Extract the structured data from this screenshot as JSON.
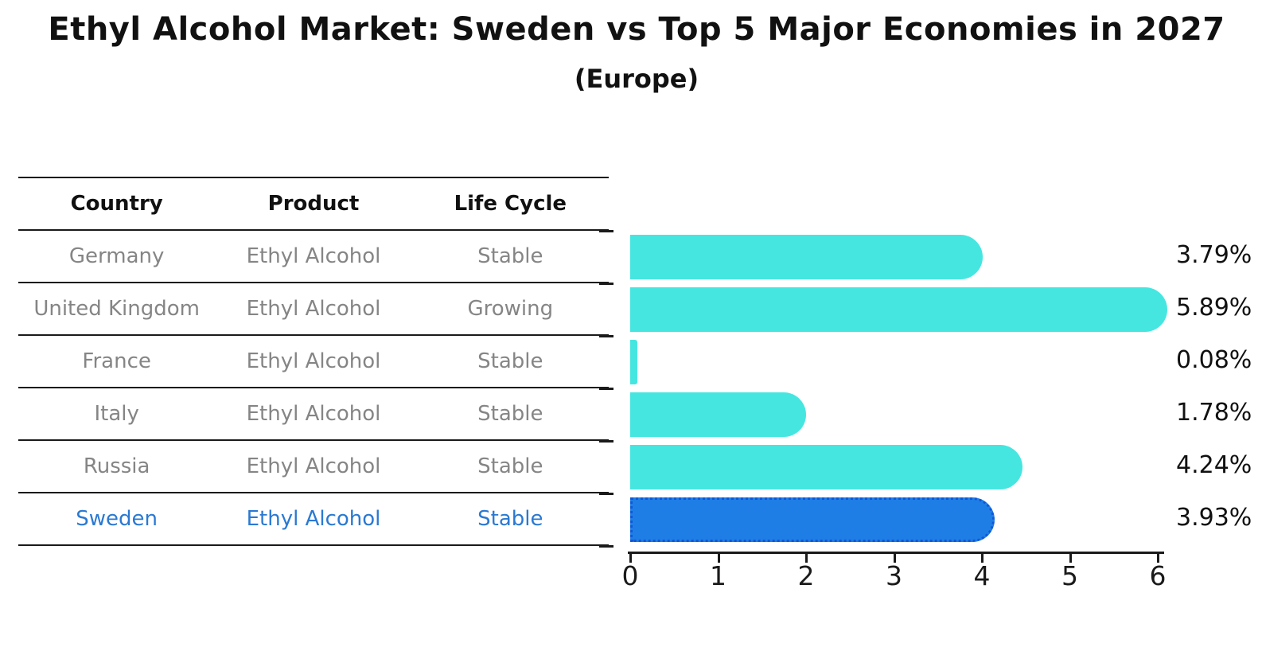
{
  "title": "Ethyl Alcohol Market: Sweden vs Top 5 Major Economies in 2027",
  "subtitle": "(Europe)",
  "table": {
    "headers": [
      "Country",
      "Product",
      "Life Cycle"
    ],
    "rows": [
      {
        "country": "Germany",
        "product": "Ethyl Alcohol",
        "life_cycle": "Stable",
        "highlight": false
      },
      {
        "country": "United Kingdom",
        "product": "Ethyl Alcohol",
        "life_cycle": "Growing",
        "highlight": false
      },
      {
        "country": "France",
        "product": "Ethyl Alcohol",
        "life_cycle": "Stable",
        "highlight": false
      },
      {
        "country": "Italy",
        "product": "Ethyl Alcohol",
        "life_cycle": "Stable",
        "highlight": false
      },
      {
        "country": "Russia",
        "product": "Ethyl Alcohol",
        "life_cycle": "Stable",
        "highlight": false
      },
      {
        "country": "Sweden",
        "product": "Ethyl Alcohol",
        "life_cycle": "Stable",
        "highlight": true
      }
    ]
  },
  "chart_data": {
    "type": "bar",
    "orientation": "horizontal",
    "title": "Ethyl Alcohol Market: Sweden vs Top 5 Major Economies in 2027",
    "subtitle": "(Europe)",
    "categories": [
      "Germany",
      "United Kingdom",
      "France",
      "Italy",
      "Russia",
      "Sweden"
    ],
    "values": [
      3.79,
      5.89,
      0.08,
      1.78,
      4.24,
      3.93
    ],
    "value_labels": [
      "3.79%",
      "5.89%",
      "0.08%",
      "1.78%",
      "4.24%",
      "3.93%"
    ],
    "x_ticks": [
      0,
      1,
      2,
      3,
      4,
      5,
      6
    ],
    "xlim": [
      0,
      6.08
    ],
    "grid": false,
    "legend": false,
    "highlight_index": 5,
    "bar_color": "#45e6e0",
    "highlight_bar_color": "#1e7ee6",
    "highlight_border_color": "#0f58d6"
  },
  "colors": {
    "header_text": "#111111",
    "row_text": "#858585",
    "highlight_text": "#2a79d2",
    "axis": "#1a1a1a"
  }
}
